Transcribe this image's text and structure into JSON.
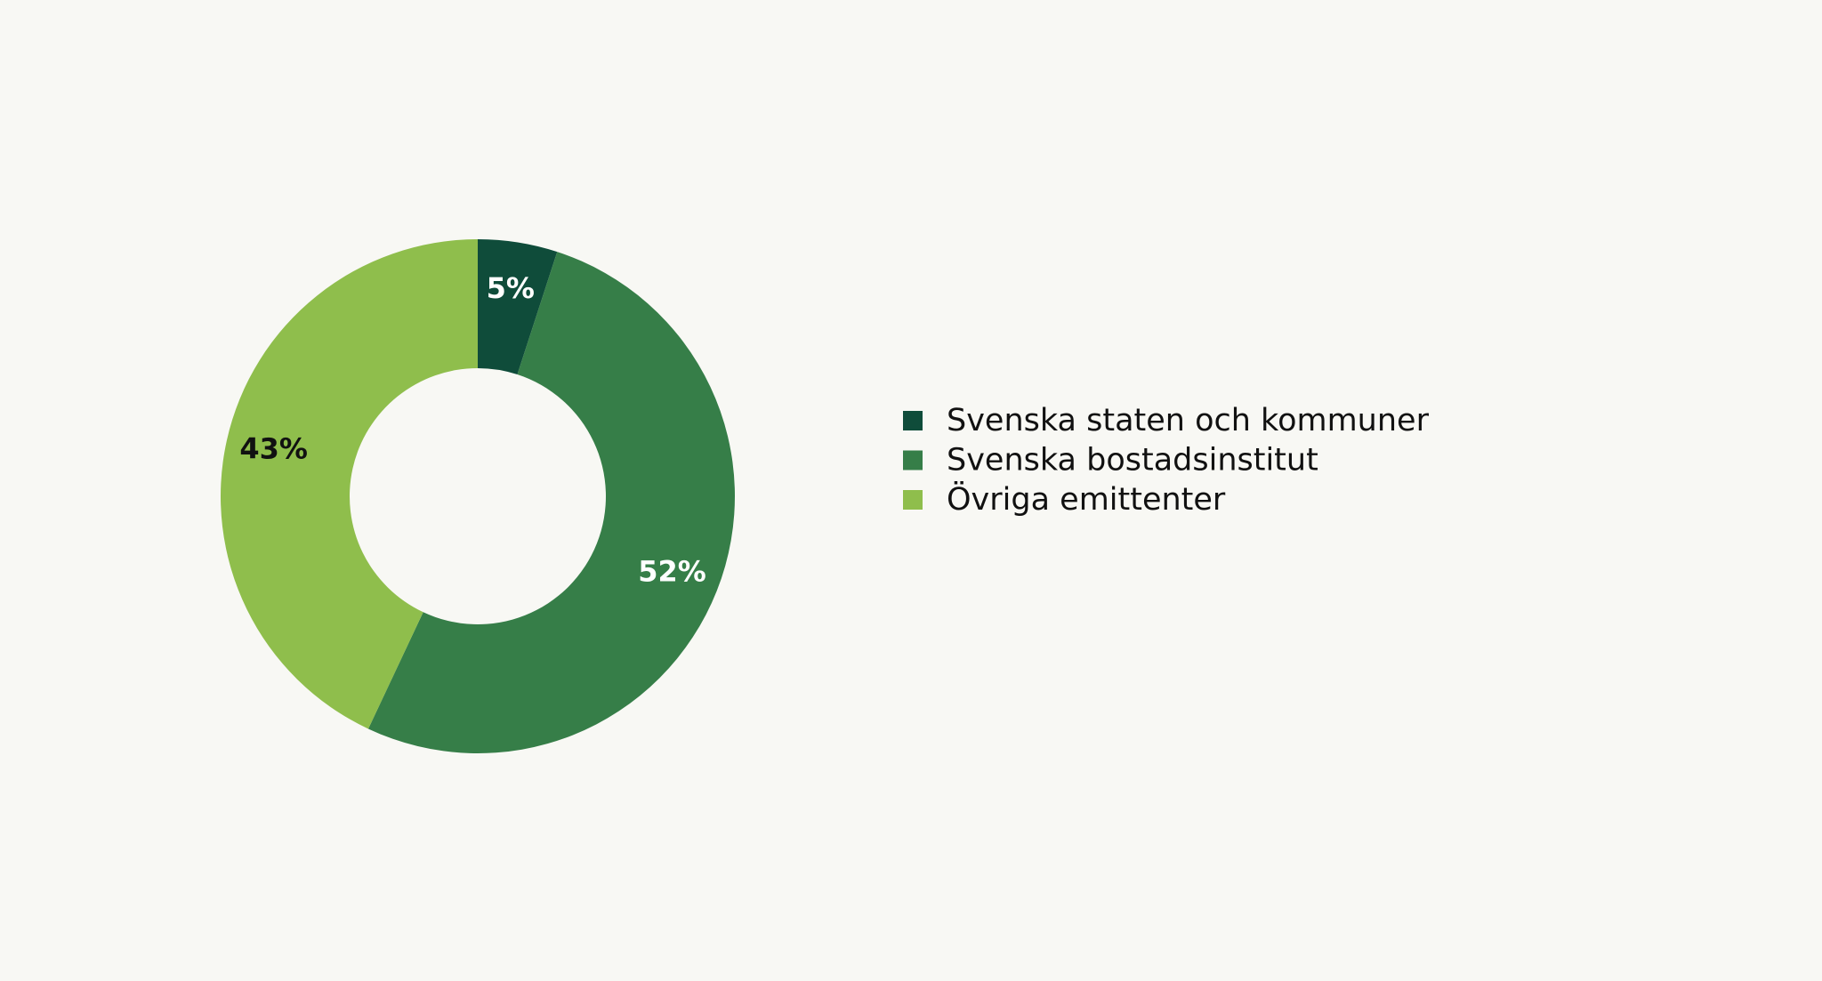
{
  "chart_data": {
    "type": "donut",
    "categories": [
      "Svenska staten och kommuner",
      "Svenska bostadsinstitut",
      "Övriga emittenter"
    ],
    "values": [
      5,
      52,
      43
    ],
    "value_labels": [
      "5%",
      "52%",
      "43%"
    ],
    "colors": [
      "#0f4c3a",
      "#367e48",
      "#8fbe4c"
    ],
    "legend": "right"
  }
}
